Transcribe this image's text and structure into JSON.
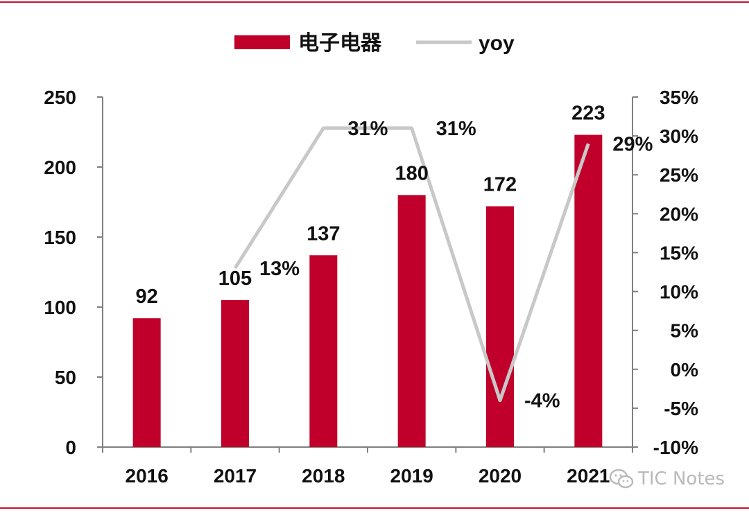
{
  "colors": {
    "bar": "#c0002a",
    "line": "#c8c8c8",
    "frame": "#c8102e",
    "axis": "#7f7f7f",
    "text": "#111111",
    "watermark": "#b9b9b9"
  },
  "watermark": {
    "text": "TIC Notes",
    "icon": "wechat-icon"
  },
  "chart_data": {
    "type": "bar",
    "categories": [
      "2016",
      "2017",
      "2018",
      "2019",
      "2020",
      "2021"
    ],
    "legend": {
      "position": "top-center",
      "bar_label": "电子电器",
      "line_label": "yoy"
    },
    "series": [
      {
        "name": "电子电器",
        "type": "bar",
        "axis": "left",
        "values": [
          92,
          105,
          137,
          180,
          172,
          223
        ],
        "data_labels": [
          "92",
          "105",
          "137",
          "180",
          "172",
          "223"
        ]
      },
      {
        "name": "yoy",
        "type": "line",
        "axis": "right",
        "values": [
          null,
          13,
          31,
          31,
          -4,
          29
        ],
        "data_labels": [
          "",
          "13%",
          "31%",
          "31%",
          "-4%",
          "29%"
        ]
      }
    ],
    "y_left": {
      "ylim": [
        0,
        250
      ],
      "ticks": [
        "0",
        "50",
        "100",
        "150",
        "200",
        "250"
      ]
    },
    "y_right": {
      "ylim": [
        -10,
        35
      ],
      "unit": "%",
      "ticks": [
        "-10%",
        "-5%",
        "0%",
        "5%",
        "10%",
        "15%",
        "20%",
        "25%",
        "30%",
        "35%"
      ]
    },
    "grid": false
  }
}
